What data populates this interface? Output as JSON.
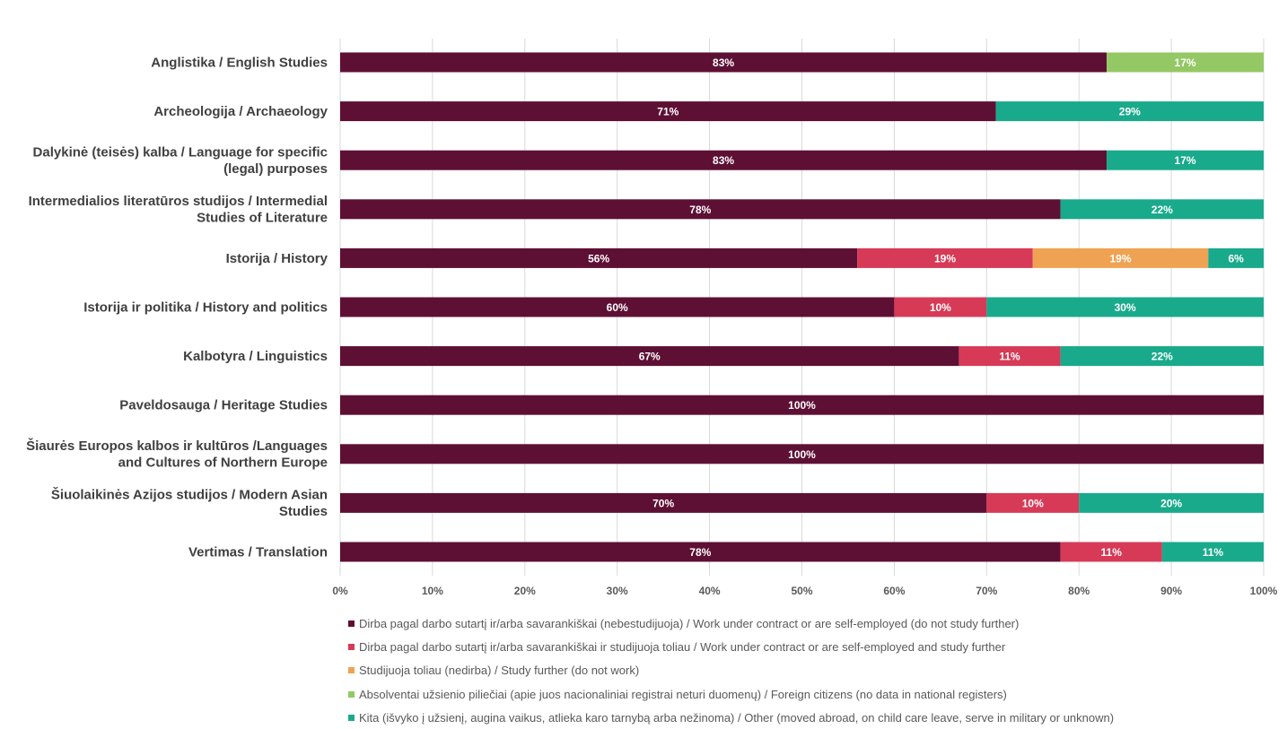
{
  "chart_data": {
    "type": "bar",
    "orientation": "horizontal",
    "stacked": true,
    "categories": [
      "Anglistika / English Studies",
      "Archeologija / Archaeology",
      "Dalykinė (teisės) kalba / Language for specific (legal) purposes",
      "Intermedialios literatūros studijos / Intermedial Studies of Literature",
      "Istorija / History",
      "Istorija ir politika / History and politics",
      "Kalbotyra / Linguistics",
      "Paveldosauga / Heritage Studies",
      "Šiaurės Europos kalbos ir kultūros /Languages and Cultures of Northern Europe",
      "Šiuolaikinės Azijos studijos / Modern Asian Studies",
      "Vertimas / Translation"
    ],
    "category_lines": [
      [
        "Anglistika / English Studies"
      ],
      [
        "Archeologija / Archaeology"
      ],
      [
        "Dalykinė (teisės) kalba / Language for specific",
        "(legal) purposes"
      ],
      [
        "Intermedialios literatūros studijos / Intermedial",
        "Studies of Literature"
      ],
      [
        "Istorija / History"
      ],
      [
        "Istorija ir politika / History and politics"
      ],
      [
        "Kalbotyra / Linguistics"
      ],
      [
        "Paveldosauga / Heritage Studies"
      ],
      [
        "Šiaurės Europos kalbos ir kultūros /Languages",
        "and Cultures of Northern Europe"
      ],
      [
        "Šiuolaikinės Azijos studijos / Modern Asian",
        "Studies"
      ],
      [
        "Vertimas / Translation"
      ]
    ],
    "series": [
      {
        "name": "Dirba pagal darbo sutartį ir/arba savarankiškai (nebestudijuoja) / Work under contract or are self-employed (do not study further)",
        "color": "#5e1034",
        "values": [
          83,
          71,
          83,
          78,
          56,
          60,
          67,
          100,
          100,
          70,
          78
        ]
      },
      {
        "name": "Dirba pagal darbo sutartį ir/arba savarankiškai  ir studijuoja toliau / Work under contract or are self-employed and study further",
        "color": "#d63a57",
        "values": [
          0,
          0,
          0,
          0,
          19,
          10,
          11,
          0,
          0,
          10,
          11
        ]
      },
      {
        "name": "Studijuoja toliau (nedirba) / Study further (do not work)",
        "color": "#f0a253",
        "values": [
          0,
          0,
          0,
          0,
          19,
          0,
          0,
          0,
          0,
          0,
          0
        ]
      },
      {
        "name": "Absolventai užsienio piliečiai (apie juos nacionaliniai registrai neturi duomenų) / Foreign citizens (no data in national registers)",
        "color": "#94c864",
        "values": [
          17,
          0,
          0,
          0,
          0,
          0,
          0,
          0,
          0,
          0,
          0
        ]
      },
      {
        "name": "Kita (išvyko į užsienį, augina vaikus, atlieka karo tarnybą arba nežinoma) / Other (moved abroad, on child care leave, serve in military or unknown)",
        "color": "#19aa8b",
        "values": [
          0,
          29,
          17,
          22,
          6,
          30,
          22,
          0,
          0,
          20,
          11
        ]
      }
    ],
    "x_ticks": [
      "0%",
      "10%",
      "20%",
      "30%",
      "40%",
      "50%",
      "60%",
      "70%",
      "80%",
      "90%",
      "100%"
    ],
    "xlim": [
      0,
      100
    ],
    "value_suffix": "%",
    "grid": "vertical",
    "legend_position": "bottom"
  }
}
